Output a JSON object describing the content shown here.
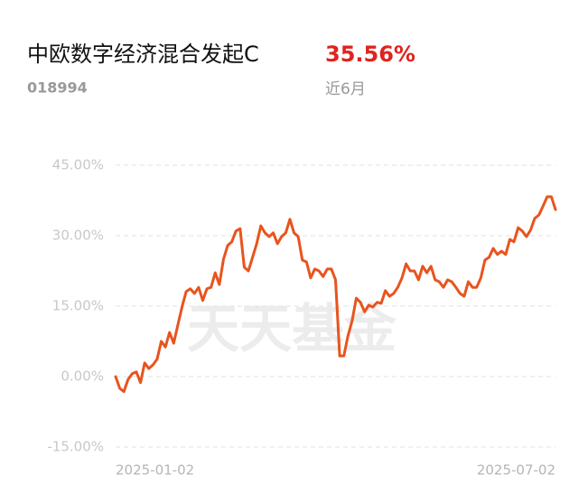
{
  "header": {
    "title": "中欧数字经济混合发起C",
    "return": "35.56%",
    "code": "018994",
    "period": "近6月"
  },
  "chart_data": {
    "type": "line",
    "watermark": "天天基金",
    "categories": [
      "2025-01-02",
      null,
      null,
      null,
      null,
      null,
      null,
      null,
      null,
      null,
      null,
      null,
      null,
      null,
      null,
      null,
      null,
      null,
      null,
      null,
      null,
      null,
      null,
      null,
      null,
      null,
      null,
      null,
      null,
      null,
      null,
      null,
      null,
      null,
      null,
      null,
      null,
      null,
      null,
      null,
      null,
      null,
      null,
      null,
      null,
      null,
      null,
      null,
      null,
      null,
      null,
      null,
      null,
      null,
      null,
      null,
      null,
      null,
      null,
      null,
      null,
      null,
      null,
      null,
      null,
      null,
      null,
      null,
      null,
      null,
      null,
      null,
      null,
      null,
      null,
      null,
      null,
      null,
      null,
      null,
      null,
      null,
      null,
      null,
      null,
      null,
      null,
      null,
      null,
      null,
      null,
      null,
      null,
      null,
      null,
      null,
      null,
      null,
      null,
      null,
      null,
      null,
      null,
      null,
      null,
      null,
      "2025-07-02"
    ],
    "series": [
      {
        "color": "#e8541e",
        "values": [
          0,
          -2.5,
          -3.2,
          -0.6,
          0.6,
          1.0,
          -1.3,
          2.9,
          1.7,
          2.5,
          3.7,
          7.5,
          6.3,
          9.4,
          7.1,
          11,
          14.8,
          18.1,
          18.7,
          17.7,
          19,
          16.2,
          18.7,
          19,
          22.1,
          19.6,
          25,
          27.9,
          28.7,
          31,
          31.5,
          23.3,
          22.5,
          25.4,
          28.3,
          32.1,
          30.6,
          29.8,
          30.6,
          28.3,
          29.8,
          30.6,
          33.5,
          30.6,
          29.8,
          24.8,
          24.4,
          21,
          22.9,
          22.5,
          21.3,
          22.9,
          22.9,
          20.6,
          4.4,
          4.4,
          8.7,
          11.9,
          16.7,
          15.8,
          13.8,
          15.2,
          14.8,
          15.8,
          15.6,
          18.3,
          17.1,
          17.7,
          19,
          21,
          24,
          22.5,
          22.5,
          20.6,
          23.5,
          22.1,
          23.5,
          20.6,
          20.2,
          19,
          20.6,
          20.2,
          19,
          17.7,
          17.1,
          20.2,
          19,
          19,
          21,
          24.8,
          25.4,
          27.3,
          26,
          26.7,
          26,
          29.2,
          28.7,
          31.7,
          31,
          29.8,
          31.2,
          33.7,
          34.4,
          36.3,
          38.3,
          38.3,
          35.56
        ]
      }
    ],
    "ylim": [
      -15,
      45
    ],
    "yticks": [
      {
        "value": -15,
        "label": "-15.00%"
      },
      {
        "value": 0,
        "label": "0.00%"
      },
      {
        "value": 15,
        "label": "15.00%"
      },
      {
        "value": 30,
        "label": "30.00%"
      },
      {
        "value": 45,
        "label": "45.00%"
      }
    ],
    "grid": true
  }
}
